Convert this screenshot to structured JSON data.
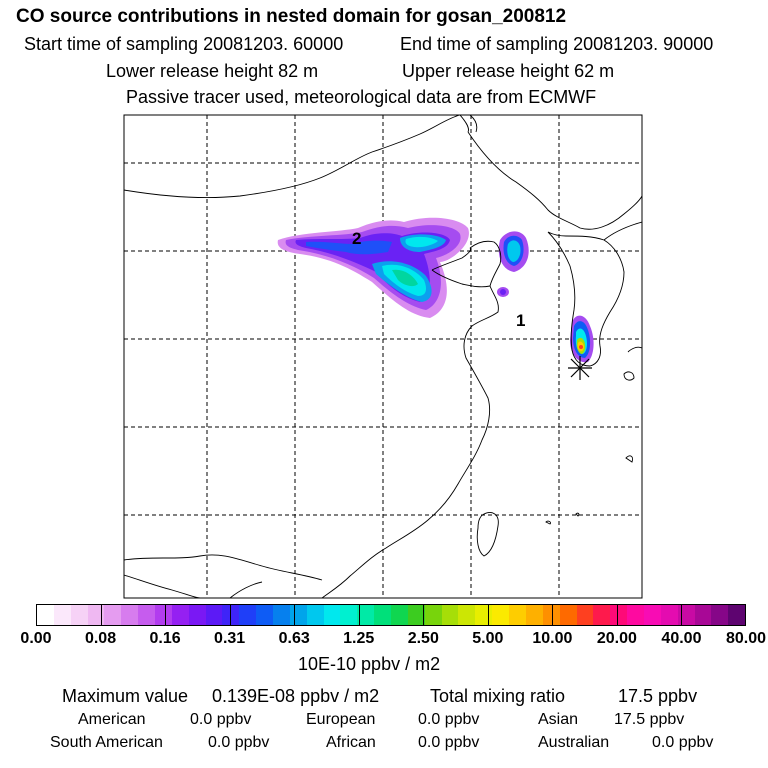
{
  "header": {
    "title": "CO  source contributions in nested domain for gosan_200812",
    "start_label": "Start time of sampling 20081203. 60000",
    "end_label": "End time of sampling 20081203. 90000",
    "lower_label": "Lower release height   82 m",
    "upper_label": "Upper release height   62 m",
    "tracer_note": "Passive tracer used, meteorological data are from ECMWF"
  },
  "map": {
    "labels": [
      "2",
      "1"
    ],
    "receptor_marker": "asterisk-icon"
  },
  "colorbar": {
    "ticks": [
      "0.00",
      "0.08",
      "0.16",
      "0.31",
      "0.63",
      "1.25",
      "2.50",
      "5.00",
      "10.00",
      "20.00",
      "40.00",
      "80.00"
    ],
    "unit_label": "10E-10 ppbv / m2",
    "colors": [
      "#ffffff",
      "#fbe8fb",
      "#f6d2f6",
      "#efb8f2",
      "#e59cf0",
      "#d77cee",
      "#c65cee",
      "#b23cef",
      "#9520f2",
      "#7a18f4",
      "#5c1af6",
      "#3f24f8",
      "#1f3ff8",
      "#0e5cf5",
      "#0680ee",
      "#00a4ea",
      "#00c8ee",
      "#00e8ee",
      "#00f0d0",
      "#00eaa6",
      "#00e07a",
      "#10d650",
      "#3ccc20",
      "#78d40c",
      "#a6de08",
      "#cce604",
      "#e8ee00",
      "#fbea00",
      "#fecd00",
      "#feb000",
      "#fe9000",
      "#fe6a00",
      "#fe4020",
      "#fe1a4c",
      "#fe0a78",
      "#fe0aa0",
      "#f80cb4",
      "#e40cb0",
      "#c80aa4",
      "#a80896",
      "#860688",
      "#5e0470"
    ]
  },
  "summary": {
    "max_label": "Maximum value",
    "max_value": "0.139E-08 ppbv / m2",
    "total_label": "Total mixing ratio",
    "total_value": "17.5 ppbv",
    "regions": [
      {
        "name": "American",
        "value": "0.0 ppbv"
      },
      {
        "name": "European",
        "value": "0.0 ppbv"
      },
      {
        "name": "Asian",
        "value": "17.5 ppbv"
      },
      {
        "name": "South American",
        "value": "0.0 ppbv"
      },
      {
        "name": "African",
        "value": "0.0 ppbv"
      },
      {
        "name": "Australian",
        "value": "0.0 ppbv"
      }
    ]
  }
}
